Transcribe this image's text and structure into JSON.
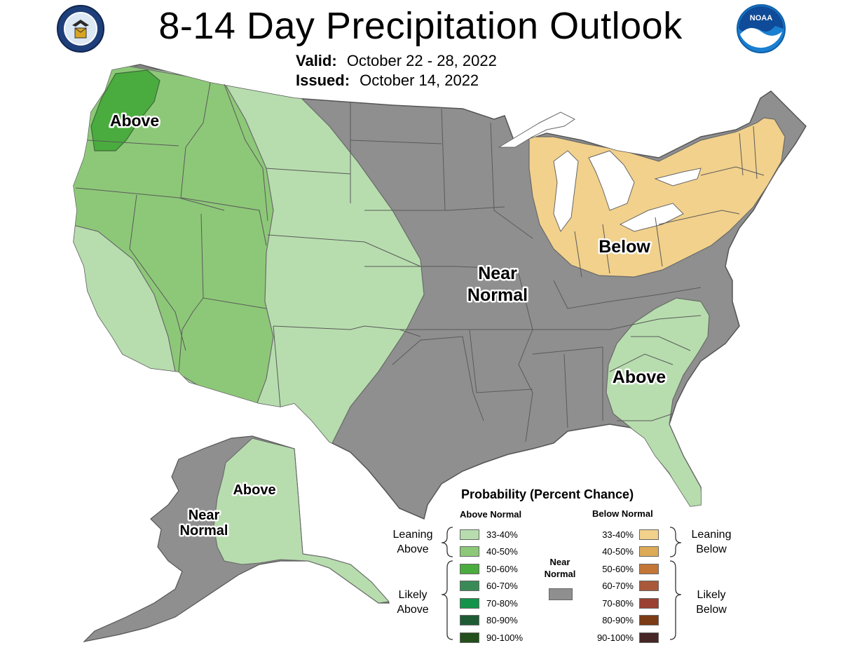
{
  "title": "8-14 Day Precipitation Outlook",
  "valid_label": "Valid:",
  "valid_value": "October 22 - 28, 2022",
  "issued_label": "Issued:",
  "issued_value": "October 14, 2022",
  "logos": {
    "left": "department-of-commerce-seal",
    "right": "noaa-logo"
  },
  "map_labels": {
    "nw_above": "Above",
    "center_near_1": "Near",
    "center_near_2": "Normal",
    "ne_below": "Below",
    "se_above": "Above",
    "ak_above": "Above",
    "ak_near_1": "Near",
    "ak_near_2": "Normal"
  },
  "legend": {
    "title": "Probability (Percent Chance)",
    "above_header": "Above Normal",
    "below_header": "Below Normal",
    "near_header_1": "Near",
    "near_header_2": "Normal",
    "leaning_above_1": "Leaning",
    "leaning_above_2": "Above",
    "likely_above_1": "Likely",
    "likely_above_2": "Above",
    "leaning_below_1": "Leaning",
    "leaning_below_2": "Below",
    "likely_below_1": "Likely",
    "likely_below_2": "Below",
    "above_swatches": [
      {
        "label": "33-40%",
        "color": "#b7ddae"
      },
      {
        "label": "40-50%",
        "color": "#8dc878"
      },
      {
        "label": "50-60%",
        "color": "#4aac3e"
      },
      {
        "label": "60-70%",
        "color": "#3a8a57"
      },
      {
        "label": "70-80%",
        "color": "#13944a"
      },
      {
        "label": "80-90%",
        "color": "#1e5b35"
      },
      {
        "label": "90-100%",
        "color": "#224f1c"
      }
    ],
    "below_swatches": [
      {
        "label": "33-40%",
        "color": "#f2d18c"
      },
      {
        "label": "40-50%",
        "color": "#ddab57"
      },
      {
        "label": "50-60%",
        "color": "#c47636"
      },
      {
        "label": "60-70%",
        "color": "#a9583a"
      },
      {
        "label": "70-80%",
        "color": "#9a4133"
      },
      {
        "label": "80-90%",
        "color": "#7b3b15"
      },
      {
        "label": "90-100%",
        "color": "#472626"
      }
    ],
    "near_color": "#8f8f8f"
  },
  "colors": {
    "near_normal": "#8f8f8f",
    "lean_above": "#b7ddae",
    "above_40_50": "#8dc878",
    "above_50_60": "#4aac3e",
    "lean_below": "#f2d18c",
    "state_lines": "#5a5a5a",
    "lakes": "#ffffff"
  }
}
